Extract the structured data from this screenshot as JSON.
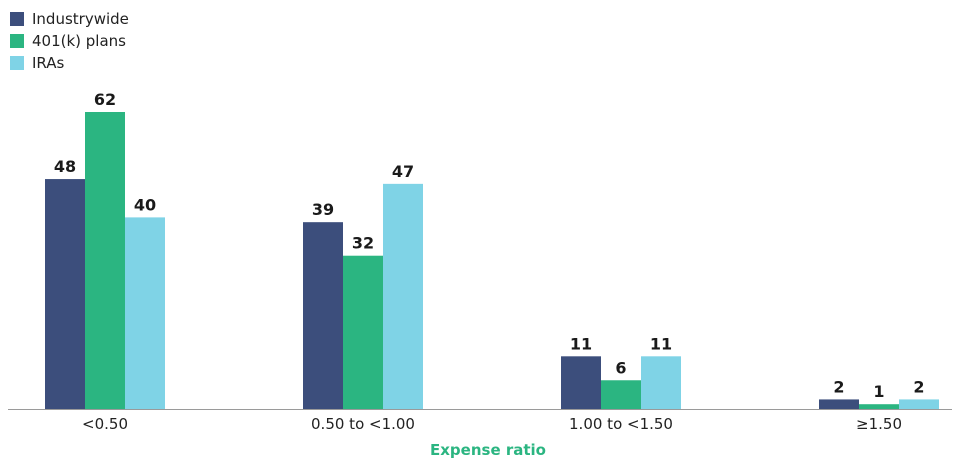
{
  "chart_data": {
    "type": "bar",
    "xlabel": "Expense ratio",
    "ylabel": "",
    "ylim": [
      0,
      70
    ],
    "grid": false,
    "legend_position": "top-left",
    "categories": [
      "<0.50",
      "0.50 to <1.00",
      "1.00 to <1.50",
      "≥1.50"
    ],
    "series": [
      {
        "name": "Industrywide",
        "color": "#3c4e7c",
        "values": [
          48,
          39,
          11,
          2
        ]
      },
      {
        "name": "401(k) plans",
        "color": "#2bb581",
        "values": [
          62,
          32,
          6,
          1
        ]
      },
      {
        "name": "IRAs",
        "color": "#7fd3e6",
        "values": [
          40,
          47,
          11,
          2
        ]
      }
    ]
  }
}
